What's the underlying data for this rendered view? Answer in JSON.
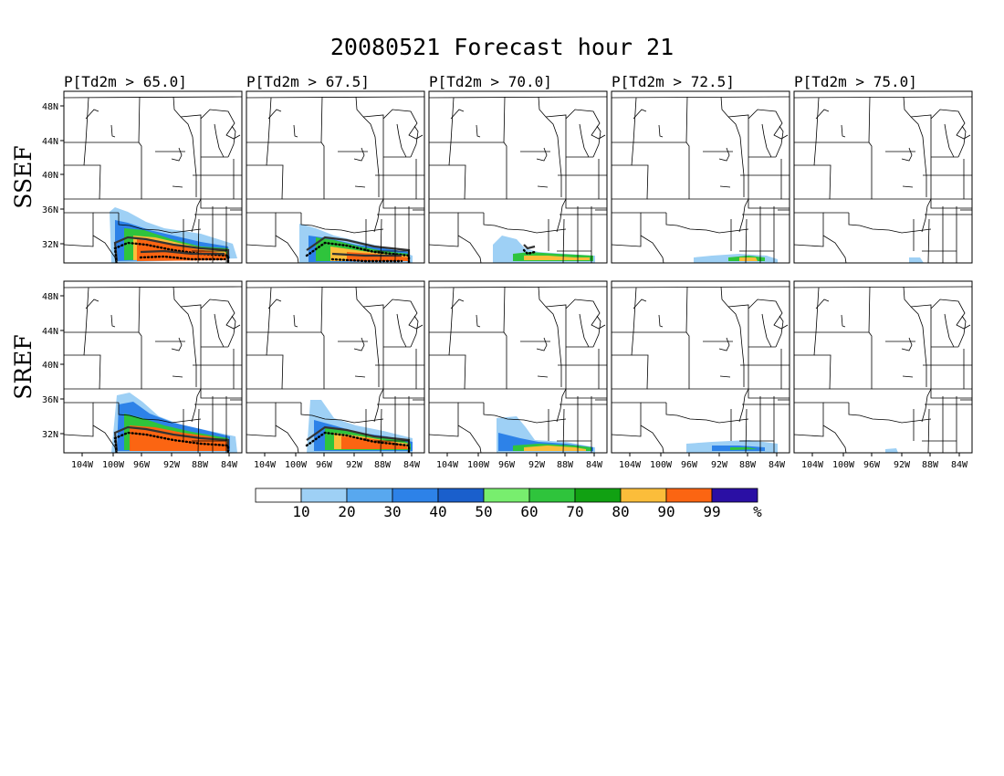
{
  "title": "20080521 Forecast hour 21",
  "column_titles": [
    "P[Td2m > 65.0]",
    "P[Td2m > 67.5]",
    "P[Td2m > 70.0]",
    "P[Td2m > 72.5]",
    "P[Td2m > 75.0]"
  ],
  "row_labels": [
    "SSEF",
    "SREF"
  ],
  "lat_ticks": [
    "48N",
    "44N",
    "40N",
    "36N",
    "32N"
  ],
  "lon_ticks": [
    "104W",
    "100W",
    "96W",
    "92W",
    "88W",
    "84W"
  ],
  "colorbar": {
    "labels": [
      "10",
      "20",
      "30",
      "40",
      "50",
      "60",
      "70",
      "80",
      "90",
      "99",
      "%"
    ],
    "colors": [
      "#ffffff",
      "#9ed0f5",
      "#58a8ef",
      "#2d82e8",
      "#1a5fcc",
      "#78ee6e",
      "#2fc43c",
      "#11a112",
      "#fbbd3a",
      "#fb6512",
      "#2a0fa4"
    ]
  }
}
